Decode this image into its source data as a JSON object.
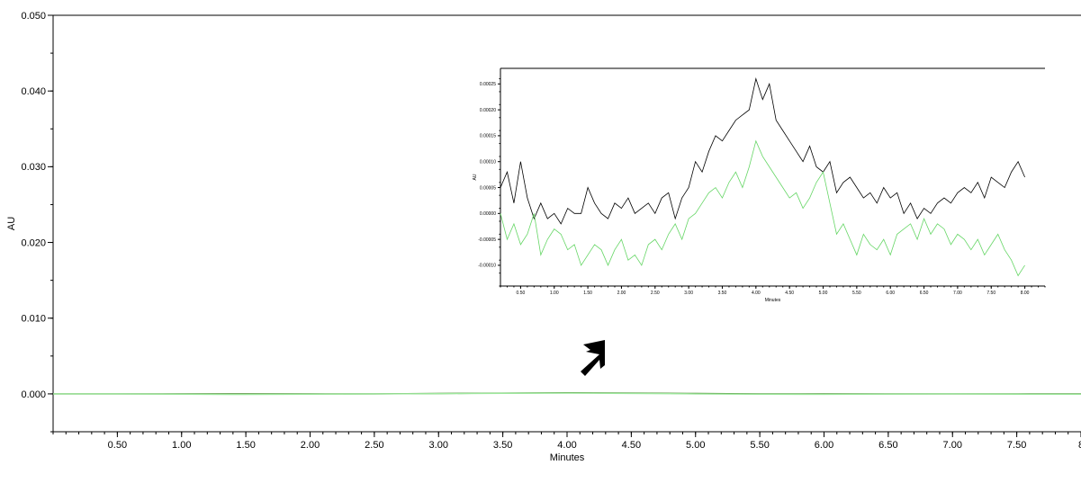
{
  "chart_data": [
    {
      "type": "line",
      "xlabel": "Minutes",
      "ylabel": "AU",
      "xlim": [
        0.0,
        8.0
      ],
      "ylim": [
        -0.005,
        0.05
      ],
      "xticks": [
        "0.50",
        "1.00",
        "1.50",
        "2.00",
        "2.50",
        "3.00",
        "3.50",
        "4.00",
        "4.50",
        "5.00",
        "5.50",
        "6.00",
        "6.50",
        "7.00",
        "7.50",
        "8"
      ],
      "xtick_values": [
        0.5,
        1.0,
        1.5,
        2.0,
        2.5,
        3.0,
        3.5,
        4.0,
        4.5,
        5.0,
        5.5,
        6.0,
        6.5,
        7.0,
        7.5,
        8.0
      ],
      "yticks": [
        "0.000",
        "0.010",
        "0.020",
        "0.030",
        "0.040",
        "0.050"
      ],
      "ytick_values": [
        0.0,
        0.01,
        0.02,
        0.03,
        0.04,
        0.05
      ],
      "grid": false,
      "series": [
        {
          "color": "#3a7a1a",
          "x": [
            0.0,
            0.5,
            1.0,
            1.5,
            2.0,
            2.5,
            3.0,
            3.5,
            4.0,
            4.5,
            5.0,
            5.5,
            6.0,
            6.5,
            7.0,
            7.5,
            8.0
          ],
          "y": [
            0.0,
            0.0,
            0.0,
            0.0,
            0.0,
            0.0,
            5e-05,
            0.0001,
            0.00015,
            0.0001,
            5e-05,
            0.0,
            0.0,
            0.0,
            0.0,
            0.0,
            0.0
          ]
        },
        {
          "color": "#9ee89e",
          "x": [
            0.0,
            0.5,
            1.0,
            1.5,
            2.0,
            2.5,
            3.0,
            3.5,
            4.0,
            4.5,
            5.0,
            5.5,
            6.0,
            6.5,
            7.0,
            7.5,
            8.0
          ],
          "y": [
            0.0,
            0.0,
            -5e-05,
            -8e-05,
            -5e-05,
            0.0,
            3e-05,
            8e-05,
            0.0001,
            6e-05,
            0.0,
            -5e-05,
            -6e-05,
            -3e-05,
            0.0,
            -4e-05,
            -5e-05
          ]
        }
      ]
    },
    {
      "type": "line",
      "xlabel": "Minutes",
      "ylabel": "AU",
      "xlim": [
        0.2,
        8.3
      ],
      "ylim": [
        -0.00014,
        0.00028
      ],
      "xticks": [
        "0.50",
        "1.00",
        "1.50",
        "2.00",
        "2.50",
        "3.00",
        "3.50",
        "4.00",
        "4.50",
        "5.00",
        "5.50",
        "6.00",
        "6.50",
        "7.00",
        "7.50",
        "8.00"
      ],
      "xtick_values": [
        0.5,
        1.0,
        1.5,
        2.0,
        2.5,
        3.0,
        3.5,
        4.0,
        4.5,
        5.0,
        5.5,
        6.0,
        6.5,
        7.0,
        7.5,
        8.0
      ],
      "yticks": [
        "-0.00010",
        "-0.00005",
        "0.00000",
        "0.00005",
        "0.00010",
        "0.00015",
        "0.00020",
        "0.00025"
      ],
      "ytick_values": [
        -0.0001,
        -5e-05,
        0.0,
        5e-05,
        0.0001,
        0.00015,
        0.0002,
        0.00025
      ],
      "grid": false,
      "series": [
        {
          "color": "#000000",
          "x": [
            0.2,
            0.3,
            0.4,
            0.5,
            0.6,
            0.7,
            0.8,
            0.9,
            1.0,
            1.1,
            1.2,
            1.3,
            1.4,
            1.5,
            1.6,
            1.7,
            1.8,
            1.9,
            2.0,
            2.1,
            2.2,
            2.3,
            2.4,
            2.5,
            2.6,
            2.7,
            2.8,
            2.9,
            3.0,
            3.1,
            3.2,
            3.3,
            3.4,
            3.5,
            3.6,
            3.7,
            3.8,
            3.9,
            4.0,
            4.1,
            4.2,
            4.3,
            4.4,
            4.5,
            4.6,
            4.7,
            4.8,
            4.9,
            5.0,
            5.1,
            5.2,
            5.3,
            5.4,
            5.5,
            5.6,
            5.7,
            5.8,
            5.9,
            6.0,
            6.1,
            6.2,
            6.3,
            6.4,
            6.5,
            6.6,
            6.7,
            6.8,
            6.9,
            7.0,
            7.1,
            7.2,
            7.3,
            7.4,
            7.5,
            7.6,
            7.7,
            7.8,
            7.9,
            8.0
          ],
          "y": [
            5e-05,
            8e-05,
            2e-05,
            0.0001,
            3e-05,
            -1e-05,
            2e-05,
            -1e-05,
            0.0,
            -2e-05,
            1e-05,
            0.0,
            0.0,
            5e-05,
            2e-05,
            0.0,
            -1e-05,
            2e-05,
            1e-05,
            3e-05,
            0.0,
            1e-05,
            2e-05,
            0.0,
            3e-05,
            4e-05,
            -1e-05,
            3e-05,
            5e-05,
            0.0001,
            8e-05,
            0.00012,
            0.00015,
            0.00014,
            0.00016,
            0.00018,
            0.00019,
            0.0002,
            0.00026,
            0.00022,
            0.00025,
            0.00018,
            0.00016,
            0.00014,
            0.00012,
            0.0001,
            0.00013,
            9e-05,
            8e-05,
            0.0001,
            4e-05,
            6e-05,
            7e-05,
            5e-05,
            3e-05,
            4e-05,
            2e-05,
            5e-05,
            3e-05,
            4e-05,
            0.0,
            2e-05,
            -1e-05,
            1e-05,
            0.0,
            2e-05,
            3e-05,
            2e-05,
            4e-05,
            5e-05,
            4e-05,
            6e-05,
            3e-05,
            7e-05,
            6e-05,
            5e-05,
            8e-05,
            0.0001,
            7e-05
          ]
        },
        {
          "color": "#66d666",
          "x": [
            0.2,
            0.3,
            0.4,
            0.5,
            0.6,
            0.7,
            0.8,
            0.9,
            1.0,
            1.1,
            1.2,
            1.3,
            1.4,
            1.5,
            1.6,
            1.7,
            1.8,
            1.9,
            2.0,
            2.1,
            2.2,
            2.3,
            2.4,
            2.5,
            2.6,
            2.7,
            2.8,
            2.9,
            3.0,
            3.1,
            3.2,
            3.3,
            3.4,
            3.5,
            3.6,
            3.7,
            3.8,
            3.9,
            4.0,
            4.1,
            4.2,
            4.3,
            4.4,
            4.5,
            4.6,
            4.7,
            4.8,
            4.9,
            5.0,
            5.1,
            5.2,
            5.3,
            5.4,
            5.5,
            5.6,
            5.7,
            5.8,
            5.9,
            6.0,
            6.1,
            6.2,
            6.3,
            6.4,
            6.5,
            6.6,
            6.7,
            6.8,
            6.9,
            7.0,
            7.1,
            7.2,
            7.3,
            7.4,
            7.5,
            7.6,
            7.7,
            7.8,
            7.9,
            8.0
          ],
          "y": [
            0.0,
            -5e-05,
            -2e-05,
            -6e-05,
            -4e-05,
            0.0,
            -8e-05,
            -5e-05,
            -3e-05,
            -4e-05,
            -7e-05,
            -6e-05,
            -0.0001,
            -8e-05,
            -6e-05,
            -7e-05,
            -0.0001,
            -7e-05,
            -5e-05,
            -9e-05,
            -8e-05,
            -0.0001,
            -6e-05,
            -5e-05,
            -7e-05,
            -4e-05,
            -2e-05,
            -5e-05,
            -1e-05,
            0.0,
            2e-05,
            4e-05,
            5e-05,
            3e-05,
            6e-05,
            8e-05,
            5e-05,
            9e-05,
            0.00014,
            0.00011,
            9e-05,
            7e-05,
            5e-05,
            3e-05,
            4e-05,
            1e-05,
            3e-05,
            6e-05,
            8e-05,
            2e-05,
            -4e-05,
            -2e-05,
            -5e-05,
            -8e-05,
            -4e-05,
            -6e-05,
            -7e-05,
            -5e-05,
            -8e-05,
            -4e-05,
            -3e-05,
            -2e-05,
            -5e-05,
            -1e-05,
            -4e-05,
            -2e-05,
            -3e-05,
            -6e-05,
            -4e-05,
            -5e-05,
            -7e-05,
            -5e-05,
            -8e-05,
            -6e-05,
            -4e-05,
            -7e-05,
            -9e-05,
            -0.00012,
            -0.0001
          ]
        }
      ]
    }
  ]
}
